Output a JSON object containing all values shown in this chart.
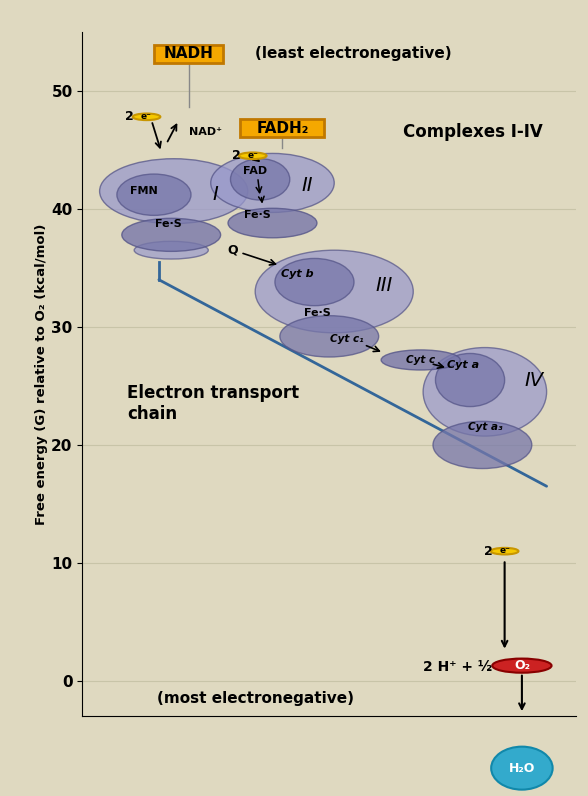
{
  "bg_color": "#dfd9c0",
  "plot_bg": "#dfd9c0",
  "ylabel": "Free energy (G) relative to O₂ (kcal/mol)",
  "ylim": [
    -3,
    55
  ],
  "xlim": [
    0,
    10
  ],
  "yticks": [
    0,
    10,
    20,
    30,
    40,
    50
  ],
  "nadh_label": "NADH",
  "fadh2_label": "FADH₂",
  "least_electroneg": "(least electronegative)",
  "most_electroneg": "(most electronegative)",
  "complexes_label": "Complexes I-IV",
  "etc_label": "Electron transport\nchain",
  "nadh_box_color": "#f5a800",
  "fadh2_box_color": "#f5a800",
  "complex_fill_light": "#9999cc",
  "complex_fill_dark": "#7777aa",
  "complex_edge": "#555588",
  "electron_color": "#f5c800",
  "electron_border": "#c89600",
  "o2_color": "#cc2222",
  "h2o_color": "#33aacc"
}
